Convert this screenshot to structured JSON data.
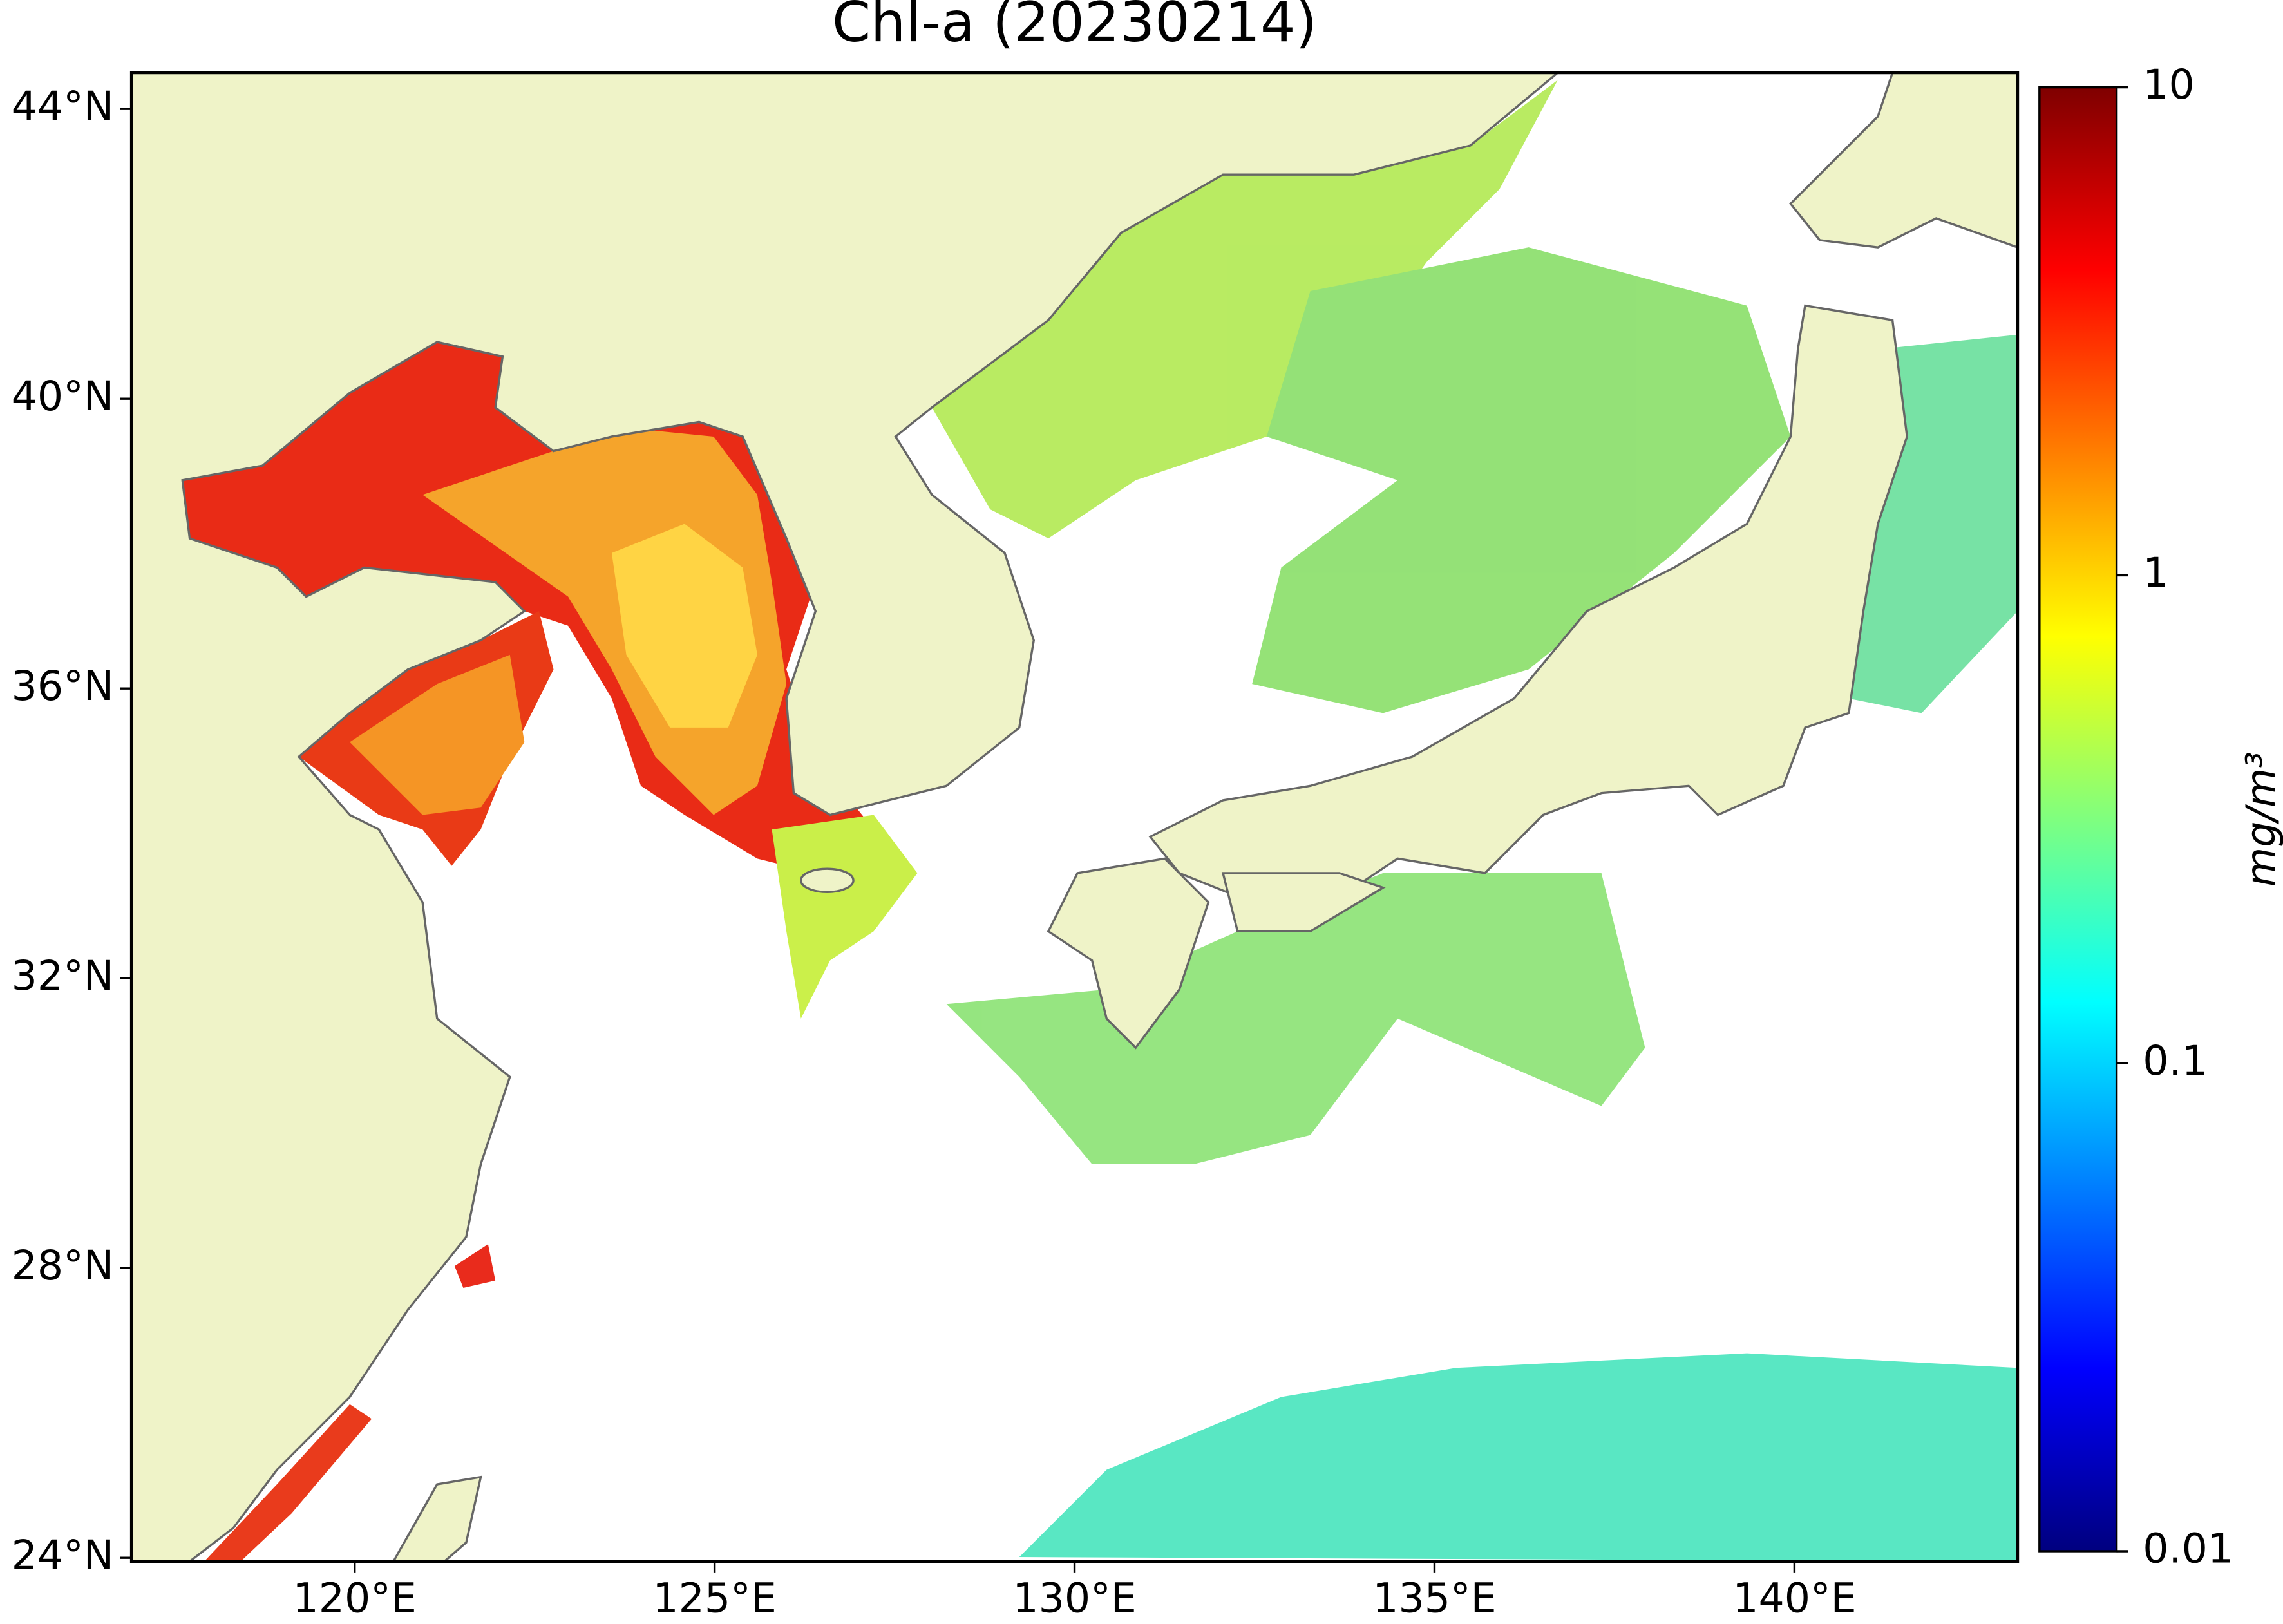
{
  "chart_data": {
    "type": "map",
    "title": "Chl-a (20230214)",
    "xlim": [
      116.9,
      143.1
    ],
    "ylim": [
      23.95,
      44.5
    ],
    "xticks": [
      {
        "value": 120,
        "label": "120°E"
      },
      {
        "value": 125,
        "label": "125°E"
      },
      {
        "value": 130,
        "label": "130°E"
      },
      {
        "value": 135,
        "label": "135°E"
      },
      {
        "value": 140,
        "label": "140°E"
      }
    ],
    "yticks": [
      {
        "value": 24,
        "label": "24°N"
      },
      {
        "value": 28,
        "label": "28°N"
      },
      {
        "value": 32,
        "label": "32°N"
      },
      {
        "value": 36,
        "label": "36°N"
      },
      {
        "value": 40,
        "label": "40°N"
      },
      {
        "value": 44,
        "label": "44°N"
      }
    ],
    "colorbar": {
      "label": "mg/m³",
      "lim": [
        0.01,
        10
      ],
      "ticks": [
        0.01,
        0.1,
        1,
        10
      ],
      "scale": "log",
      "colormap": "jet"
    }
  }
}
